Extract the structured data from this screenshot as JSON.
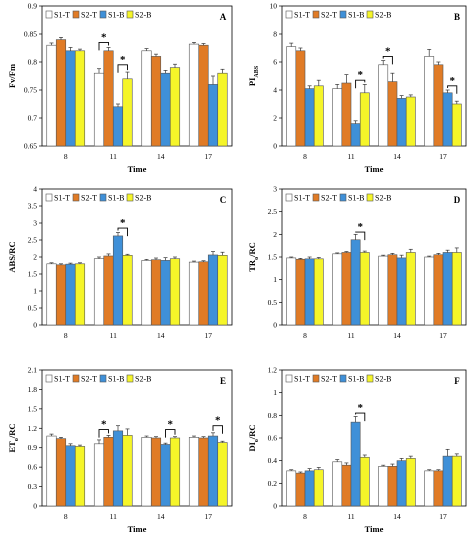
{
  "legend_colors": {
    "S1-T": "#ffffff",
    "S2-T": "#e07b26",
    "S1-B": "#3f90d8",
    "S2-B": "#f5f529"
  },
  "chart_data": [
    {
      "type": "bar",
      "panel": "A",
      "ylabel": "Fv/Fm",
      "xlabel": "Time",
      "categories": [
        "8",
        "11",
        "14",
        "17"
      ],
      "ylim": [
        0.65,
        0.9
      ],
      "yticks": [
        0.65,
        0.7,
        0.75,
        0.8,
        0.85,
        0.9
      ],
      "legend_placement": "top-left",
      "series": [
        {
          "name": "S1-T",
          "values": [
            0.83,
            0.78,
            0.82,
            0.832
          ],
          "errors": [
            0.004,
            0.008,
            0.004,
            0.003
          ]
        },
        {
          "name": "S2-T",
          "values": [
            0.84,
            0.82,
            0.81,
            0.83
          ],
          "errors": [
            0.004,
            0.006,
            0.004,
            0.003
          ]
        },
        {
          "name": "S1-B",
          "values": [
            0.82,
            0.72,
            0.78,
            0.76
          ],
          "errors": [
            0.006,
            0.005,
            0.005,
            0.015
          ]
        },
        {
          "name": "S2-B",
          "values": [
            0.82,
            0.77,
            0.79,
            0.78
          ],
          "errors": [
            0.003,
            0.012,
            0.006,
            0.007
          ]
        }
      ],
      "annotations": [
        {
          "label": "*",
          "category": 1,
          "from": 0,
          "to": 1,
          "y": 0.835
        },
        {
          "label": "*",
          "category": 1,
          "from": 2,
          "to": 3,
          "y": 0.795
        }
      ]
    },
    {
      "type": "bar",
      "panel": "B",
      "ylabel": "PI",
      "ylabel_sub": "ABS",
      "xlabel": "Time",
      "categories": [
        "8",
        "11",
        "14",
        "17"
      ],
      "ylim": [
        0,
        10
      ],
      "yticks": [
        0,
        2,
        4,
        6,
        8,
        10
      ],
      "legend_placement": "top-left",
      "series": [
        {
          "name": "S1-T",
          "values": [
            7.1,
            4.1,
            5.8,
            6.4
          ],
          "errors": [
            0.25,
            0.3,
            0.3,
            0.5
          ]
        },
        {
          "name": "S2-T",
          "values": [
            6.8,
            4.5,
            4.6,
            5.8
          ],
          "errors": [
            0.2,
            0.6,
            0.6,
            0.2
          ]
        },
        {
          "name": "S1-B",
          "values": [
            4.1,
            1.6,
            3.4,
            3.8
          ],
          "errors": [
            0.2,
            0.2,
            0.2,
            0.2
          ]
        },
        {
          "name": "S2-B",
          "values": [
            4.3,
            3.8,
            3.5,
            3.0
          ],
          "errors": [
            0.4,
            0.6,
            0.15,
            0.2
          ]
        }
      ],
      "annotations": [
        {
          "label": "*",
          "category": 1,
          "from": 2,
          "to": 3,
          "y": 4.7
        },
        {
          "label": "*",
          "category": 2,
          "from": 0,
          "to": 1,
          "y": 6.4
        },
        {
          "label": "*",
          "category": 3,
          "from": 2,
          "to": 3,
          "y": 4.3
        }
      ]
    },
    {
      "type": "bar",
      "panel": "C",
      "ylabel": "ABS/RC",
      "xlabel": "",
      "categories": [
        "8",
        "11",
        "14",
        "17"
      ],
      "ylim": [
        0,
        4
      ],
      "yticks": [
        0,
        0.5,
        1,
        1.5,
        2,
        2.5,
        3,
        3.5,
        4
      ],
      "legend_placement": "top-left",
      "series": [
        {
          "name": "S1-T",
          "values": [
            1.8,
            1.95,
            1.9,
            1.85
          ],
          "errors": [
            0.03,
            0.05,
            0.03,
            0.03
          ]
        },
        {
          "name": "S2-T",
          "values": [
            1.77,
            2.03,
            1.92,
            1.86
          ],
          "errors": [
            0.03,
            0.06,
            0.05,
            0.03
          ]
        },
        {
          "name": "S1-B",
          "values": [
            1.79,
            2.62,
            1.9,
            2.06
          ],
          "errors": [
            0.03,
            0.1,
            0.08,
            0.1
          ]
        },
        {
          "name": "S2-B",
          "values": [
            1.8,
            2.05,
            1.95,
            2.05
          ],
          "errors": [
            0.03,
            0.03,
            0.05,
            0.09
          ]
        }
      ],
      "annotations": [
        {
          "label": "*",
          "category": 1,
          "from": 2,
          "to": 3,
          "y": 2.85
        }
      ]
    },
    {
      "type": "bar",
      "panel": "D",
      "ylabel": "TR",
      "ylabel_sub": "o",
      "ylabel_tail": "/RC",
      "xlabel": "",
      "categories": [
        "8",
        "11",
        "14",
        "17"
      ],
      "ylim": [
        0,
        3
      ],
      "yticks": [
        0,
        0.5,
        1,
        1.5,
        2,
        2.5,
        3
      ],
      "legend_placement": "top-left",
      "series": [
        {
          "name": "S1-T",
          "values": [
            1.48,
            1.57,
            1.52,
            1.5
          ],
          "errors": [
            0.02,
            0.02,
            0.02,
            0.02
          ]
        },
        {
          "name": "S2-T",
          "values": [
            1.45,
            1.6,
            1.55,
            1.55
          ],
          "errors": [
            0.02,
            0.02,
            0.03,
            0.03
          ]
        },
        {
          "name": "S1-B",
          "values": [
            1.46,
            1.88,
            1.48,
            1.6
          ],
          "errors": [
            0.04,
            0.12,
            0.06,
            0.05
          ]
        },
        {
          "name": "S2-B",
          "values": [
            1.46,
            1.6,
            1.6,
            1.6
          ],
          "errors": [
            0.03,
            0.03,
            0.07,
            0.1
          ]
        }
      ],
      "annotations": [
        {
          "label": "*",
          "category": 1,
          "from": 2,
          "to": 3,
          "y": 2.05
        }
      ]
    },
    {
      "type": "bar",
      "panel": "E",
      "ylabel": "ET",
      "ylabel_sub": "o",
      "ylabel_tail": "/RC",
      "xlabel": "Time",
      "categories": [
        "8",
        "11",
        "14",
        "17"
      ],
      "ylim": [
        0,
        2.1
      ],
      "yticks": [
        0,
        0.3,
        0.6,
        0.9,
        1.2,
        1.5,
        1.8,
        2.1
      ],
      "legend_placement": "top-left",
      "series": [
        {
          "name": "S1-T",
          "values": [
            1.08,
            0.96,
            1.06,
            1.06
          ],
          "errors": [
            0.03,
            0.06,
            0.02,
            0.02
          ]
        },
        {
          "name": "S2-T",
          "values": [
            1.04,
            1.06,
            1.05,
            1.05
          ],
          "errors": [
            0.02,
            0.03,
            0.02,
            0.02
          ]
        },
        {
          "name": "S1-B",
          "values": [
            0.93,
            1.16,
            0.95,
            1.08
          ],
          "errors": [
            0.03,
            0.08,
            0.02,
            0.05
          ]
        },
        {
          "name": "S2-B",
          "values": [
            0.92,
            1.09,
            1.05,
            0.98
          ],
          "errors": [
            0.02,
            0.1,
            0.02,
            0.02
          ]
        }
      ],
      "annotations": [
        {
          "label": "*",
          "category": 1,
          "from": 0,
          "to": 1,
          "y": 1.18
        },
        {
          "label": "*",
          "category": 2,
          "from": 2,
          "to": 3,
          "y": 1.18
        },
        {
          "label": "*",
          "category": 3,
          "from": 2,
          "to": 3,
          "y": 1.24
        }
      ]
    },
    {
      "type": "bar",
      "panel": "F",
      "ylabel": "DI",
      "ylabel_sub": "o",
      "ylabel_tail": "/RC",
      "xlabel": "Time",
      "categories": [
        "8",
        "11",
        "14",
        "17"
      ],
      "ylim": [
        0,
        1.2
      ],
      "yticks": [
        0,
        0.2,
        0.4,
        0.6,
        0.8,
        1.0,
        1.2
      ],
      "legend_placement": "top-left",
      "series": [
        {
          "name": "S1-T",
          "values": [
            0.31,
            0.39,
            0.35,
            0.31
          ],
          "errors": [
            0.01,
            0.02,
            0.01,
            0.01
          ]
        },
        {
          "name": "S2-T",
          "values": [
            0.29,
            0.36,
            0.35,
            0.31
          ],
          "errors": [
            0.01,
            0.02,
            0.02,
            0.01
          ]
        },
        {
          "name": "S1-B",
          "values": [
            0.31,
            0.74,
            0.4,
            0.44
          ],
          "errors": [
            0.02,
            0.05,
            0.02,
            0.06
          ]
        },
        {
          "name": "S2-B",
          "values": [
            0.32,
            0.43,
            0.42,
            0.44
          ],
          "errors": [
            0.02,
            0.02,
            0.02,
            0.02
          ]
        }
      ],
      "annotations": [
        {
          "label": "*",
          "category": 1,
          "from": 2,
          "to": 3,
          "y": 0.82
        }
      ]
    }
  ]
}
